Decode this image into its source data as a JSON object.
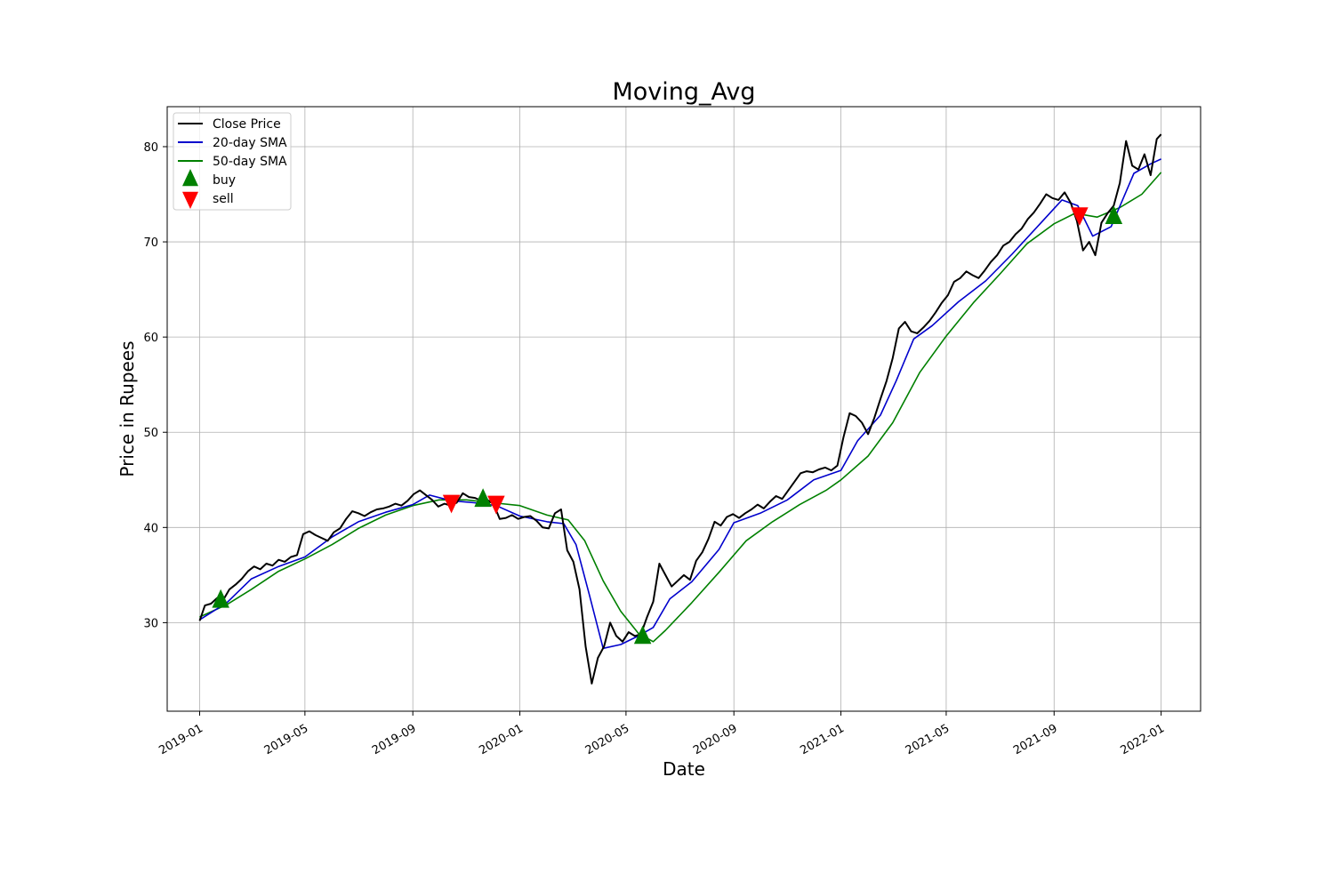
{
  "chart_data": {
    "type": "line",
    "title": "Moving_Avg",
    "xlabel": "Date",
    "ylabel": "Price in Rupees",
    "x_axis_type": "date",
    "xlim": [
      "2018-11-25",
      "2022-02-15"
    ],
    "ylim": [
      20.7,
      84.2
    ],
    "grid": true,
    "legend_position": "top-left",
    "x_ticks": [
      {
        "date": "2019-01-01",
        "label": "2019-01"
      },
      {
        "date": "2019-05-01",
        "label": "2019-05"
      },
      {
        "date": "2019-09-01",
        "label": "2019-09"
      },
      {
        "date": "2020-01-01",
        "label": "2020-01"
      },
      {
        "date": "2020-05-01",
        "label": "2020-05"
      },
      {
        "date": "2020-09-01",
        "label": "2020-09"
      },
      {
        "date": "2021-01-01",
        "label": "2021-01"
      },
      {
        "date": "2021-05-01",
        "label": "2021-05"
      },
      {
        "date": "2021-09-01",
        "label": "2021-09"
      },
      {
        "date": "2022-01-01",
        "label": "2022-01"
      }
    ],
    "y_ticks": [
      30,
      40,
      50,
      60,
      70,
      80
    ],
    "series": [
      {
        "name": "Close Price",
        "color": "#000000",
        "points": [
          [
            "2019-01-01",
            30.2
          ],
          [
            "2019-01-07",
            31.8
          ],
          [
            "2019-01-14",
            32.0
          ],
          [
            "2019-01-21",
            32.6
          ],
          [
            "2019-01-28",
            32.4
          ],
          [
            "2019-02-04",
            33.5
          ],
          [
            "2019-02-11",
            34.0
          ],
          [
            "2019-02-18",
            34.6
          ],
          [
            "2019-02-25",
            35.4
          ],
          [
            "2019-03-04",
            35.9
          ],
          [
            "2019-03-11",
            35.6
          ],
          [
            "2019-03-18",
            36.2
          ],
          [
            "2019-03-25",
            36.0
          ],
          [
            "2019-04-01",
            36.6
          ],
          [
            "2019-04-08",
            36.4
          ],
          [
            "2019-04-15",
            36.9
          ],
          [
            "2019-04-22",
            37.1
          ],
          [
            "2019-04-29",
            39.3
          ],
          [
            "2019-05-06",
            39.6
          ],
          [
            "2019-05-13",
            39.2
          ],
          [
            "2019-05-20",
            38.9
          ],
          [
            "2019-05-27",
            38.6
          ],
          [
            "2019-06-03",
            39.5
          ],
          [
            "2019-06-10",
            39.9
          ],
          [
            "2019-06-17",
            40.9
          ],
          [
            "2019-06-24",
            41.7
          ],
          [
            "2019-07-01",
            41.5
          ],
          [
            "2019-07-08",
            41.2
          ],
          [
            "2019-07-15",
            41.6
          ],
          [
            "2019-07-22",
            41.9
          ],
          [
            "2019-07-29",
            42.0
          ],
          [
            "2019-08-05",
            42.2
          ],
          [
            "2019-08-12",
            42.5
          ],
          [
            "2019-08-19",
            42.3
          ],
          [
            "2019-08-26",
            42.8
          ],
          [
            "2019-09-02",
            43.5
          ],
          [
            "2019-09-09",
            43.9
          ],
          [
            "2019-09-16",
            43.4
          ],
          [
            "2019-09-23",
            42.9
          ],
          [
            "2019-09-30",
            42.2
          ],
          [
            "2019-10-07",
            42.5
          ],
          [
            "2019-10-14",
            42.3
          ],
          [
            "2019-10-21",
            42.6
          ],
          [
            "2019-10-28",
            43.6
          ],
          [
            "2019-11-04",
            43.2
          ],
          [
            "2019-11-11",
            43.1
          ],
          [
            "2019-11-18",
            42.8
          ],
          [
            "2019-11-25",
            42.9
          ],
          [
            "2019-12-02",
            42.5
          ],
          [
            "2019-12-09",
            40.9
          ],
          [
            "2019-12-16",
            41.0
          ],
          [
            "2019-12-23",
            41.3
          ],
          [
            "2019-12-30",
            40.9
          ],
          [
            "2020-01-06",
            41.1
          ],
          [
            "2020-01-13",
            41.2
          ],
          [
            "2020-01-20",
            40.7
          ],
          [
            "2020-01-27",
            40.0
          ],
          [
            "2020-02-03",
            39.9
          ],
          [
            "2020-02-10",
            41.5
          ],
          [
            "2020-02-17",
            41.9
          ],
          [
            "2020-02-24",
            37.6
          ],
          [
            "2020-03-02",
            36.4
          ],
          [
            "2020-03-09",
            33.5
          ],
          [
            "2020-03-16",
            27.5
          ],
          [
            "2020-03-23",
            23.6
          ],
          [
            "2020-03-30",
            26.3
          ],
          [
            "2020-04-06",
            27.5
          ],
          [
            "2020-04-13",
            30.0
          ],
          [
            "2020-04-20",
            28.6
          ],
          [
            "2020-04-27",
            28.0
          ],
          [
            "2020-05-04",
            29.0
          ],
          [
            "2020-05-11",
            28.6
          ],
          [
            "2020-05-18",
            28.8
          ],
          [
            "2020-05-25",
            30.6
          ],
          [
            "2020-06-01",
            32.2
          ],
          [
            "2020-06-08",
            36.2
          ],
          [
            "2020-06-15",
            35.0
          ],
          [
            "2020-06-22",
            33.8
          ],
          [
            "2020-06-29",
            34.4
          ],
          [
            "2020-07-06",
            35.0
          ],
          [
            "2020-07-13",
            34.5
          ],
          [
            "2020-07-20",
            36.5
          ],
          [
            "2020-07-27",
            37.4
          ],
          [
            "2020-08-03",
            38.8
          ],
          [
            "2020-08-10",
            40.6
          ],
          [
            "2020-08-17",
            40.2
          ],
          [
            "2020-08-24",
            41.1
          ],
          [
            "2020-08-31",
            41.4
          ],
          [
            "2020-09-07",
            41.0
          ],
          [
            "2020-09-14",
            41.5
          ],
          [
            "2020-09-21",
            41.9
          ],
          [
            "2020-09-28",
            42.4
          ],
          [
            "2020-10-05",
            42.0
          ],
          [
            "2020-10-12",
            42.7
          ],
          [
            "2020-10-19",
            43.3
          ],
          [
            "2020-10-26",
            43.0
          ],
          [
            "2020-11-02",
            43.9
          ],
          [
            "2020-11-09",
            44.8
          ],
          [
            "2020-11-16",
            45.7
          ],
          [
            "2020-11-23",
            45.9
          ],
          [
            "2020-11-30",
            45.8
          ],
          [
            "2020-12-07",
            46.1
          ],
          [
            "2020-12-14",
            46.3
          ],
          [
            "2020-12-21",
            46.0
          ],
          [
            "2020-12-28",
            46.5
          ],
          [
            "2021-01-04",
            49.5
          ],
          [
            "2021-01-11",
            52.0
          ],
          [
            "2021-01-18",
            51.7
          ],
          [
            "2021-01-25",
            51.0
          ],
          [
            "2021-02-01",
            49.8
          ],
          [
            "2021-02-08",
            51.5
          ],
          [
            "2021-02-15",
            53.5
          ],
          [
            "2021-02-22",
            55.4
          ],
          [
            "2021-03-01",
            57.8
          ],
          [
            "2021-03-08",
            60.9
          ],
          [
            "2021-03-15",
            61.6
          ],
          [
            "2021-03-22",
            60.6
          ],
          [
            "2021-03-29",
            60.4
          ],
          [
            "2021-04-05",
            61.0
          ],
          [
            "2021-04-12",
            61.7
          ],
          [
            "2021-04-19",
            62.6
          ],
          [
            "2021-04-26",
            63.6
          ],
          [
            "2021-05-03",
            64.4
          ],
          [
            "2021-05-10",
            65.8
          ],
          [
            "2021-05-17",
            66.2
          ],
          [
            "2021-05-24",
            66.9
          ],
          [
            "2021-05-31",
            66.5
          ],
          [
            "2021-06-07",
            66.2
          ],
          [
            "2021-06-14",
            67.0
          ],
          [
            "2021-06-21",
            67.9
          ],
          [
            "2021-06-28",
            68.6
          ],
          [
            "2021-07-05",
            69.6
          ],
          [
            "2021-07-12",
            70.0
          ],
          [
            "2021-07-19",
            70.8
          ],
          [
            "2021-07-26",
            71.4
          ],
          [
            "2021-08-02",
            72.4
          ],
          [
            "2021-08-09",
            73.1
          ],
          [
            "2021-08-16",
            74.0
          ],
          [
            "2021-08-23",
            75.0
          ],
          [
            "2021-08-30",
            74.6
          ],
          [
            "2021-09-06",
            74.4
          ],
          [
            "2021-09-13",
            75.2
          ],
          [
            "2021-09-20",
            74.1
          ],
          [
            "2021-09-27",
            72.2
          ],
          [
            "2021-10-04",
            69.1
          ],
          [
            "2021-10-11",
            70.0
          ],
          [
            "2021-10-18",
            68.6
          ],
          [
            "2021-10-25",
            72.0
          ],
          [
            "2021-11-01",
            73.0
          ],
          [
            "2021-11-08",
            73.8
          ],
          [
            "2021-11-15",
            76.2
          ],
          [
            "2021-11-22",
            80.6
          ],
          [
            "2021-11-29",
            78.0
          ],
          [
            "2021-12-06",
            77.6
          ],
          [
            "2021-12-13",
            79.2
          ],
          [
            "2021-12-20",
            77.0
          ],
          [
            "2021-12-27",
            80.8
          ],
          [
            "2022-01-01",
            81.3
          ]
        ]
      },
      {
        "name": "20-day SMA",
        "color": "#0000cc",
        "points": [
          [
            "2019-01-01",
            30.3
          ],
          [
            "2019-02-01",
            32.1
          ],
          [
            "2019-03-01",
            34.6
          ],
          [
            "2019-04-01",
            35.9
          ],
          [
            "2019-05-01",
            36.9
          ],
          [
            "2019-06-01",
            39.0
          ],
          [
            "2019-07-01",
            40.6
          ],
          [
            "2019-08-01",
            41.6
          ],
          [
            "2019-09-01",
            42.4
          ],
          [
            "2019-09-20",
            43.4
          ],
          [
            "2019-10-15",
            42.8
          ],
          [
            "2019-11-10",
            42.6
          ],
          [
            "2019-12-05",
            42.3
          ],
          [
            "2020-01-01",
            41.2
          ],
          [
            "2020-02-01",
            40.6
          ],
          [
            "2020-02-20",
            40.4
          ],
          [
            "2020-03-05",
            38.2
          ],
          [
            "2020-03-20",
            33.0
          ],
          [
            "2020-04-05",
            27.3
          ],
          [
            "2020-04-25",
            27.7
          ],
          [
            "2020-05-15",
            28.6
          ],
          [
            "2020-06-01",
            29.5
          ],
          [
            "2020-06-20",
            32.5
          ],
          [
            "2020-07-15",
            34.3
          ],
          [
            "2020-08-15",
            37.7
          ],
          [
            "2020-09-01",
            40.5
          ],
          [
            "2020-10-01",
            41.5
          ],
          [
            "2020-11-01",
            42.9
          ],
          [
            "2020-12-01",
            45.0
          ],
          [
            "2021-01-01",
            46.0
          ],
          [
            "2021-01-20",
            49.1
          ],
          [
            "2021-02-15",
            51.8
          ],
          [
            "2021-03-05",
            55.4
          ],
          [
            "2021-03-25",
            59.8
          ],
          [
            "2021-04-15",
            61.2
          ],
          [
            "2021-05-15",
            63.7
          ],
          [
            "2021-06-15",
            65.9
          ],
          [
            "2021-07-15",
            68.7
          ],
          [
            "2021-08-15",
            71.8
          ],
          [
            "2021-09-10",
            74.4
          ],
          [
            "2021-09-28",
            73.8
          ],
          [
            "2021-10-15",
            70.6
          ],
          [
            "2021-11-05",
            71.6
          ],
          [
            "2021-12-01",
            77.2
          ],
          [
            "2021-12-20",
            78.2
          ],
          [
            "2022-01-01",
            78.7
          ]
        ]
      },
      {
        "name": "50-day SMA",
        "color": "#008000",
        "points": [
          [
            "2019-01-01",
            30.6
          ],
          [
            "2019-02-01",
            31.9
          ],
          [
            "2019-03-01",
            33.5
          ],
          [
            "2019-04-01",
            35.4
          ],
          [
            "2019-05-01",
            36.7
          ],
          [
            "2019-06-01",
            38.2
          ],
          [
            "2019-07-01",
            39.9
          ],
          [
            "2019-08-01",
            41.3
          ],
          [
            "2019-09-01",
            42.3
          ],
          [
            "2019-10-01",
            42.9
          ],
          [
            "2019-11-01",
            42.9
          ],
          [
            "2019-12-01",
            42.6
          ],
          [
            "2020-01-01",
            42.3
          ],
          [
            "2020-02-01",
            41.3
          ],
          [
            "2020-02-25",
            40.8
          ],
          [
            "2020-03-15",
            38.6
          ],
          [
            "2020-04-05",
            34.4
          ],
          [
            "2020-04-25",
            31.2
          ],
          [
            "2020-05-15",
            28.9
          ],
          [
            "2020-06-01",
            28.0
          ],
          [
            "2020-06-15",
            29.2
          ],
          [
            "2020-07-15",
            32.1
          ],
          [
            "2020-08-15",
            35.3
          ],
          [
            "2020-09-15",
            38.6
          ],
          [
            "2020-10-15",
            40.6
          ],
          [
            "2020-11-15",
            42.4
          ],
          [
            "2020-12-15",
            43.9
          ],
          [
            "2021-01-01",
            45.0
          ],
          [
            "2021-02-01",
            47.5
          ],
          [
            "2021-03-01",
            51.0
          ],
          [
            "2021-04-01",
            56.3
          ],
          [
            "2021-05-01",
            60.1
          ],
          [
            "2021-06-01",
            63.6
          ],
          [
            "2021-07-01",
            66.6
          ],
          [
            "2021-08-01",
            69.8
          ],
          [
            "2021-09-01",
            71.9
          ],
          [
            "2021-09-25",
            73.0
          ],
          [
            "2021-10-20",
            72.6
          ],
          [
            "2021-11-15",
            73.6
          ],
          [
            "2021-12-10",
            75.0
          ],
          [
            "2022-01-01",
            77.3
          ]
        ]
      }
    ],
    "markers": [
      {
        "name": "buy",
        "color": "#008000",
        "shape": "triangle-up",
        "points": [
          [
            "2019-01-25",
            32.3
          ],
          [
            "2019-11-20",
            42.9
          ],
          [
            "2020-05-20",
            28.5
          ],
          [
            "2021-11-08",
            72.6
          ]
        ]
      },
      {
        "name": "sell",
        "color": "#ff0000",
        "shape": "triangle-down",
        "points": [
          [
            "2019-10-15",
            42.7
          ],
          [
            "2019-12-05",
            42.6
          ],
          [
            "2021-09-30",
            72.9
          ]
        ]
      }
    ]
  }
}
